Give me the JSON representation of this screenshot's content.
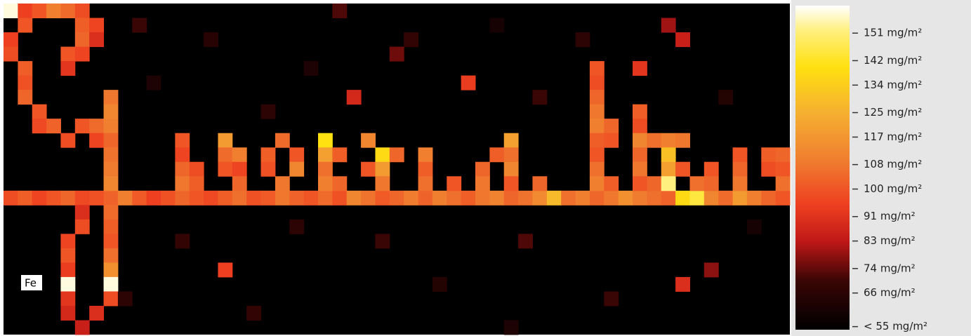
{
  "chart_data": {
    "type": "heatmap",
    "label": "Fe",
    "colorscale": [
      [
        54,
        "#000000"
      ],
      [
        70,
        "#3a0505"
      ],
      [
        83,
        "#c01818"
      ],
      [
        95,
        "#ee4020"
      ],
      [
        110,
        "#f08030"
      ],
      [
        125,
        "#f5b030"
      ],
      [
        140,
        "#ffe010"
      ],
      [
        152,
        "#fff080"
      ],
      [
        160,
        "#ffffff"
      ]
    ],
    "zlim": [
      54,
      160
    ],
    "zticks": [
      {
        "value": 151,
        "label": "151 mg/m²"
      },
      {
        "value": 142,
        "label": "142 mg/m²"
      },
      {
        "value": 134,
        "label": "134 mg/m²"
      },
      {
        "value": 125,
        "label": "125 mg/m²"
      },
      {
        "value": 117,
        "label": "117 mg/m²"
      },
      {
        "value": 108,
        "label": "108 mg/m²"
      },
      {
        "value": 100,
        "label": "100 mg/m²"
      },
      {
        "value": 91,
        "label": "91 mg/m²"
      },
      {
        "value": 83,
        "label": "83 mg/m²"
      },
      {
        "value": 74,
        "label": "74 mg/m²"
      },
      {
        "value": 66,
        "label": "66 mg/m²"
      },
      {
        "value": 55,
        "label": "< 55 mg/m²"
      }
    ],
    "cells": [
      [
        0,
        13,
        98
      ],
      [
        1,
        13,
        102
      ],
      [
        2,
        13,
        96
      ],
      [
        3,
        13,
        100
      ],
      [
        4,
        13,
        104
      ],
      [
        5,
        13,
        97
      ],
      [
        6,
        13,
        99
      ],
      [
        7,
        13,
        103
      ],
      [
        8,
        13,
        110
      ],
      [
        9,
        13,
        101
      ],
      [
        10,
        13,
        95
      ],
      [
        11,
        13,
        99
      ],
      [
        12,
        13,
        104
      ],
      [
        13,
        13,
        100
      ],
      [
        14,
        13,
        97
      ],
      [
        15,
        13,
        102
      ],
      [
        16,
        13,
        106
      ],
      [
        17,
        13,
        99
      ],
      [
        18,
        13,
        101
      ],
      [
        19,
        13,
        108
      ],
      [
        20,
        13,
        103
      ],
      [
        21,
        13,
        100
      ],
      [
        22,
        13,
        105
      ],
      [
        23,
        13,
        99
      ],
      [
        24,
        13,
        112
      ],
      [
        25,
        13,
        107
      ],
      [
        26,
        13,
        101
      ],
      [
        27,
        13,
        104
      ],
      [
        28,
        13,
        109
      ],
      [
        29,
        13,
        103
      ],
      [
        30,
        13,
        110
      ],
      [
        31,
        13,
        106
      ],
      [
        32,
        13,
        102
      ],
      [
        33,
        13,
        108
      ],
      [
        34,
        13,
        111
      ],
      [
        35,
        13,
        104
      ],
      [
        36,
        13,
        107
      ],
      [
        37,
        13,
        113
      ],
      [
        38,
        13,
        128
      ],
      [
        39,
        13,
        106
      ],
      [
        40,
        13,
        110
      ],
      [
        41,
        13,
        104
      ],
      [
        42,
        13,
        108
      ],
      [
        43,
        13,
        115
      ],
      [
        44,
        13,
        109
      ],
      [
        45,
        13,
        106
      ],
      [
        46,
        13,
        103
      ],
      [
        47,
        13,
        138
      ],
      [
        48,
        13,
        145
      ],
      [
        49,
        13,
        112
      ],
      [
        50,
        13,
        105
      ],
      [
        51,
        13,
        118
      ],
      [
        52,
        13,
        110
      ],
      [
        53,
        13,
        104
      ],
      [
        54,
        13,
        100
      ],
      [
        0,
        0,
        158
      ],
      [
        1,
        0,
        95
      ],
      [
        2,
        0,
        100
      ],
      [
        3,
        0,
        110
      ],
      [
        4,
        0,
        105
      ],
      [
        5,
        0,
        98
      ],
      [
        1,
        1,
        100
      ],
      [
        5,
        1,
        102
      ],
      [
        6,
        1,
        96
      ],
      [
        0,
        2,
        95
      ],
      [
        5,
        2,
        104
      ],
      [
        6,
        2,
        90
      ],
      [
        0,
        3,
        98
      ],
      [
        4,
        3,
        100
      ],
      [
        5,
        3,
        96
      ],
      [
        1,
        4,
        102
      ],
      [
        4,
        4,
        92
      ],
      [
        1,
        5,
        99
      ],
      [
        1,
        6,
        104
      ],
      [
        7,
        6,
        108
      ],
      [
        2,
        7,
        100
      ],
      [
        7,
        7,
        112
      ],
      [
        2,
        8,
        97
      ],
      [
        3,
        8,
        103
      ],
      [
        5,
        8,
        100
      ],
      [
        6,
        8,
        105
      ],
      [
        7,
        8,
        110
      ],
      [
        4,
        9,
        98
      ],
      [
        6,
        9,
        96
      ],
      [
        7,
        9,
        104
      ],
      [
        7,
        10,
        107
      ],
      [
        7,
        11,
        109
      ],
      [
        7,
        12,
        112
      ],
      [
        5,
        14,
        90
      ],
      [
        7,
        14,
        105
      ],
      [
        5,
        15,
        98
      ],
      [
        7,
        15,
        102
      ],
      [
        4,
        16,
        96
      ],
      [
        7,
        16,
        100
      ],
      [
        4,
        17,
        100
      ],
      [
        7,
        17,
        106
      ],
      [
        4,
        18,
        94
      ],
      [
        7,
        18,
        115
      ],
      [
        4,
        19,
        158
      ],
      [
        7,
        19,
        158
      ],
      [
        4,
        20,
        92
      ],
      [
        7,
        20,
        98
      ],
      [
        4,
        21,
        88
      ],
      [
        6,
        21,
        90
      ],
      [
        5,
        22,
        85
      ],
      [
        12,
        9,
        100
      ],
      [
        12,
        10,
        96
      ],
      [
        12,
        11,
        104
      ],
      [
        12,
        12,
        108
      ],
      [
        13,
        11,
        98
      ],
      [
        13,
        12,
        102
      ],
      [
        15,
        9,
        118
      ],
      [
        15,
        10,
        105
      ],
      [
        15,
        11,
        100
      ],
      [
        16,
        10,
        110
      ],
      [
        16,
        11,
        96
      ],
      [
        16,
        12,
        104
      ],
      [
        18,
        10,
        102
      ],
      [
        18,
        11,
        99
      ],
      [
        19,
        9,
        105
      ],
      [
        19,
        12,
        108
      ],
      [
        20,
        10,
        100
      ],
      [
        20,
        11,
        112
      ],
      [
        22,
        9,
        140
      ],
      [
        22,
        10,
        120
      ],
      [
        22,
        11,
        106
      ],
      [
        22,
        12,
        110
      ],
      [
        23,
        10,
        102
      ],
      [
        23,
        12,
        104
      ],
      [
        25,
        9,
        112
      ],
      [
        25,
        11,
        100
      ],
      [
        26,
        10,
        138
      ],
      [
        26,
        11,
        118
      ],
      [
        26,
        12,
        108
      ],
      [
        27,
        10,
        104
      ],
      [
        29,
        10,
        110
      ],
      [
        29,
        11,
        102
      ],
      [
        29,
        12,
        106
      ],
      [
        31,
        12,
        100
      ],
      [
        33,
        11,
        104
      ],
      [
        33,
        12,
        108
      ],
      [
        34,
        10,
        102
      ],
      [
        35,
        9,
        120
      ],
      [
        35,
        10,
        106
      ],
      [
        35,
        11,
        112
      ],
      [
        35,
        12,
        100
      ],
      [
        37,
        12,
        104
      ],
      [
        41,
        4,
        100
      ],
      [
        41,
        5,
        98
      ],
      [
        41,
        6,
        104
      ],
      [
        41,
        7,
        108
      ],
      [
        41,
        8,
        110
      ],
      [
        41,
        9,
        102
      ],
      [
        41,
        10,
        100
      ],
      [
        41,
        11,
        106
      ],
      [
        41,
        12,
        110
      ],
      [
        42,
        8,
        104
      ],
      [
        42,
        9,
        100
      ],
      [
        42,
        12,
        102
      ],
      [
        44,
        7,
        102
      ],
      [
        44,
        8,
        98
      ],
      [
        44,
        9,
        112
      ],
      [
        44,
        10,
        104
      ],
      [
        44,
        11,
        108
      ],
      [
        44,
        12,
        100
      ],
      [
        45,
        9,
        106
      ],
      [
        45,
        12,
        104
      ],
      [
        46,
        9,
        110
      ],
      [
        46,
        10,
        130
      ],
      [
        46,
        11,
        120
      ],
      [
        46,
        12,
        152
      ],
      [
        47,
        9,
        108
      ],
      [
        47,
        11,
        100
      ],
      [
        48,
        12,
        106
      ],
      [
        49,
        11,
        100
      ],
      [
        49,
        12,
        104
      ],
      [
        51,
        10,
        100
      ],
      [
        51,
        11,
        104
      ],
      [
        51,
        12,
        108
      ],
      [
        53,
        10,
        102
      ],
      [
        53,
        11,
        98
      ],
      [
        54,
        10,
        104
      ],
      [
        54,
        11,
        100
      ],
      [
        54,
        12,
        106
      ],
      [
        9,
        1,
        70
      ],
      [
        14,
        2,
        65
      ],
      [
        23,
        0,
        72
      ],
      [
        28,
        2,
        68
      ],
      [
        34,
        1,
        60
      ],
      [
        40,
        2,
        66
      ],
      [
        46,
        1,
        80
      ],
      [
        47,
        2,
        85
      ],
      [
        24,
        6,
        88
      ],
      [
        32,
        5,
        94
      ],
      [
        44,
        4,
        92
      ],
      [
        10,
        5,
        62
      ],
      [
        18,
        7,
        66
      ],
      [
        37,
        6,
        70
      ],
      [
        50,
        6,
        64
      ],
      [
        12,
        16,
        68
      ],
      [
        15,
        18,
        95
      ],
      [
        20,
        15,
        66
      ],
      [
        26,
        16,
        70
      ],
      [
        30,
        19,
        64
      ],
      [
        36,
        16,
        72
      ],
      [
        47,
        19,
        90
      ],
      [
        49,
        18,
        78
      ],
      [
        52,
        15,
        60
      ],
      [
        8,
        20,
        66
      ],
      [
        17,
        21,
        68
      ],
      [
        35,
        22,
        62
      ],
      [
        42,
        20,
        70
      ],
      [
        27,
        3,
        75
      ],
      [
        21,
        4,
        62
      ]
    ]
  }
}
